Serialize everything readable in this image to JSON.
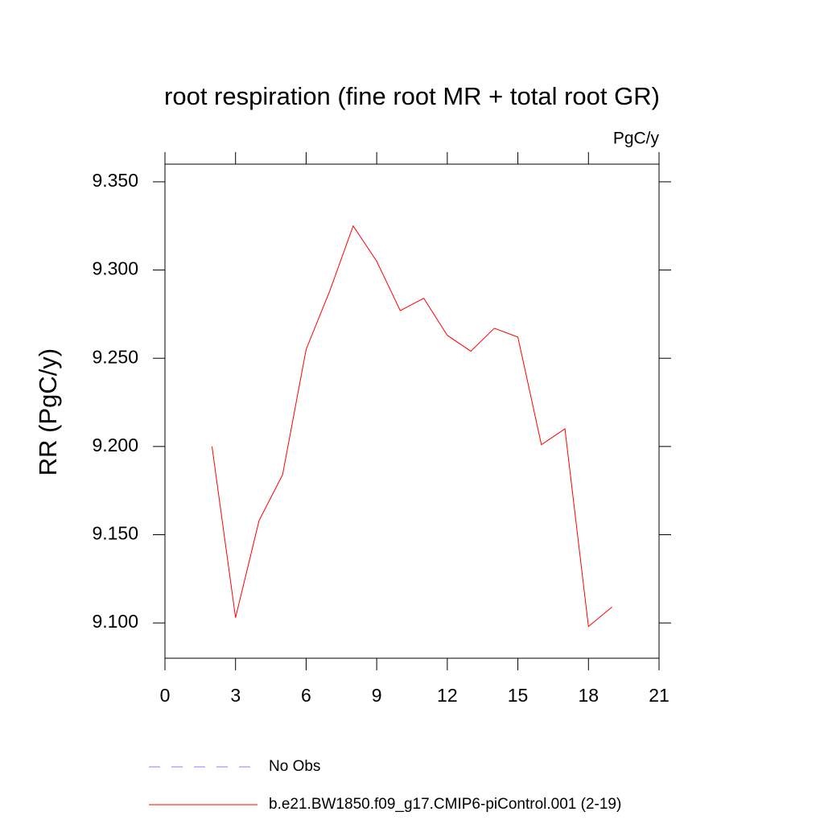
{
  "chart_data": {
    "type": "line",
    "title": "root respiration (fine root MR + total root GR)",
    "units": "PgC/y",
    "y_label": "RR  (PgC/y)",
    "x": [
      2,
      3,
      4,
      5,
      6,
      7,
      8,
      9,
      10,
      11,
      12,
      13,
      14,
      15,
      16,
      17,
      18,
      19
    ],
    "series": [
      {
        "name": "No Obs",
        "color": "#8080ff",
        "dashed": true,
        "values": [
          null,
          null,
          null,
          null,
          null,
          null,
          null,
          null,
          null,
          null,
          null,
          null,
          null,
          null,
          null,
          null,
          null,
          null
        ]
      },
      {
        "name": "b.e21.BW1850.f09_g17.CMIP6-piControl.001 (2-19)",
        "color": "#ff0000",
        "dashed": false,
        "values": [
          9.2,
          9.103,
          9.158,
          9.184,
          9.255,
          9.288,
          9.325,
          9.305,
          9.277,
          9.284,
          9.263,
          9.254,
          9.267,
          9.262,
          9.201,
          9.21,
          9.098,
          9.109
        ]
      }
    ],
    "xlim": [
      0,
      21
    ],
    "xticks": [
      0,
      3,
      6,
      9,
      12,
      15,
      18,
      21
    ],
    "ylim": [
      9.08,
      9.36
    ],
    "yticks": [
      {
        "value": 9.1,
        "label": "9.100"
      },
      {
        "value": 9.15,
        "label": "9.150"
      },
      {
        "value": 9.2,
        "label": "9.200"
      },
      {
        "value": 9.25,
        "label": "9.250"
      },
      {
        "value": 9.3,
        "label": "9.300"
      },
      {
        "value": 9.35,
        "label": "9.350"
      }
    ]
  }
}
